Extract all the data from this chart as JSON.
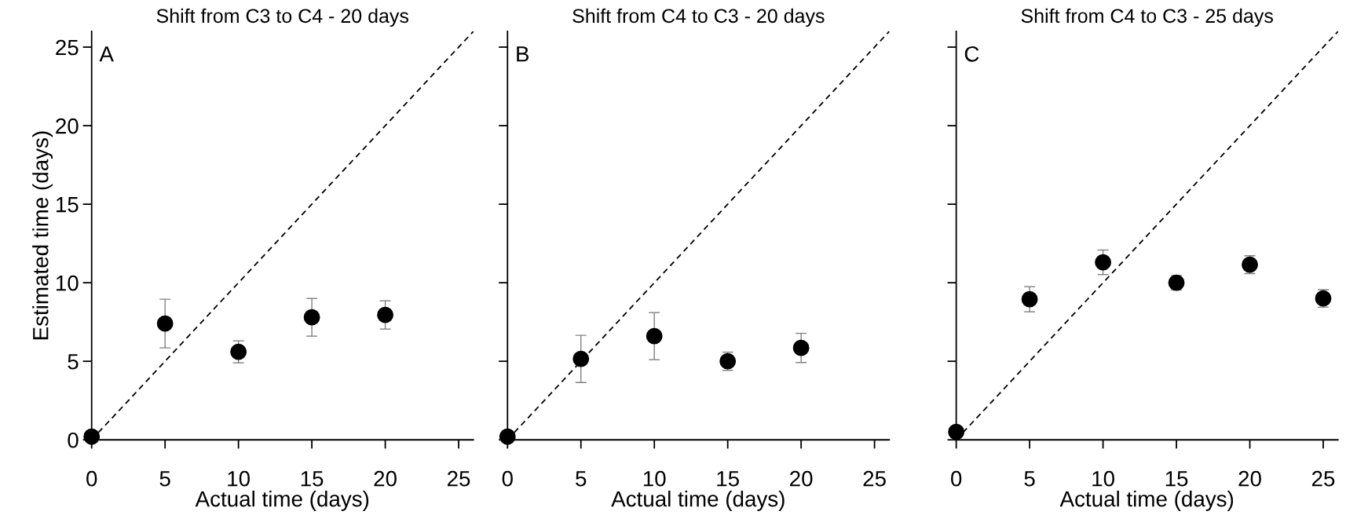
{
  "chart_data": [
    {
      "type": "scatter",
      "title": "Shift from C3 to C4 - 20 days",
      "xlabel": "Actual time (days)",
      "ylabel": "Estimated time (days)",
      "annotations": [
        "A"
      ],
      "x": [
        0,
        5,
        10,
        15,
        20
      ],
      "xlim": [
        0,
        26
      ],
      "ylim": [
        0,
        26
      ],
      "xticks": [
        0,
        5,
        10,
        15,
        20,
        25
      ],
      "yticks": [
        0,
        5,
        10,
        15,
        20,
        25
      ],
      "grid": false,
      "marker": "circle",
      "series": [
        {
          "color": "#000000",
          "values": [
            0.2,
            7.4,
            5.6,
            7.8,
            7.95
          ],
          "errors": [
            null,
            1.55,
            0.7,
            1.2,
            0.9
          ]
        },
        {
          "type": "line",
          "color": "#000000",
          "line_style": "dashed",
          "marker": "none",
          "x": [
            0,
            13,
            26
          ],
          "values": [
            0,
            13,
            26
          ]
        }
      ]
    },
    {
      "type": "scatter",
      "title": "Shift from C4 to C3 - 20 days",
      "xlabel": "Actual time (days)",
      "annotations": [
        "B"
      ],
      "tick_labels": "x",
      "x": [
        0,
        5,
        10,
        15,
        20
      ],
      "xlim": [
        0,
        26
      ],
      "ylim": [
        0,
        26
      ],
      "xticks": [
        0,
        5,
        10,
        15,
        20,
        25
      ],
      "yticks": [
        0,
        5,
        10,
        15,
        20,
        25
      ],
      "grid": false,
      "marker": "circle",
      "series": [
        {
          "color": "#000000",
          "values": [
            0.2,
            5.15,
            6.6,
            5.0,
            5.85
          ],
          "errors": [
            null,
            1.5,
            1.5,
            0.58,
            0.93
          ]
        },
        {
          "type": "line",
          "color": "#000000",
          "line_style": "dashed",
          "marker": "none",
          "x": [
            0,
            26
          ],
          "values": [
            0,
            26
          ]
        }
      ]
    },
    {
      "type": "scatter",
      "title": "Shift from C4 to C3 - 25 days",
      "xlabel": "Actual time (days)",
      "annotations": [
        "C"
      ],
      "tick_labels": "x",
      "x": [
        0,
        5,
        10,
        15,
        20,
        25
      ],
      "xlim": [
        0,
        26
      ],
      "ylim": [
        0,
        26
      ],
      "xticks": [
        0,
        5,
        10,
        15,
        20,
        25
      ],
      "yticks": [
        0,
        5,
        10,
        15,
        20,
        25
      ],
      "grid": false,
      "marker": "circle",
      "series": [
        {
          "color": "#000000",
          "values": [
            0.5,
            8.95,
            11.3,
            10.0,
            11.15,
            9.0
          ],
          "errors": [
            null,
            0.8,
            0.78,
            0.46,
            0.57,
            0.56
          ]
        },
        {
          "type": "line",
          "color": "#000000",
          "line_style": "dashed",
          "marker": "none",
          "x": [
            0,
            26
          ],
          "values": [
            0,
            26
          ]
        }
      ]
    }
  ]
}
